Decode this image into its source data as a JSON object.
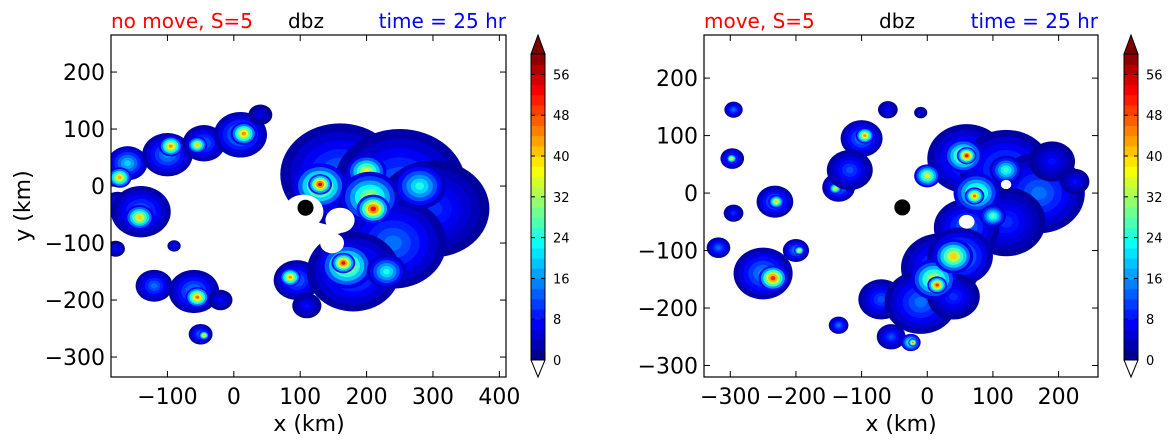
{
  "chart_data": [
    {
      "type": "heatmap",
      "title_left": "no move, S=5",
      "title_center": "dbz",
      "title_right": "time = 25 hr",
      "xlabel": "x (km)",
      "ylabel": "y (km)",
      "xlim": [
        -185,
        410
      ],
      "ylim": [
        -335,
        265
      ],
      "xticks": [
        -100,
        0,
        100,
        200,
        300,
        400
      ],
      "xtick_labels": [
        "−100",
        "0",
        "100",
        "200",
        "300",
        "400"
      ],
      "yticks": [
        -300,
        -200,
        -100,
        0,
        100,
        200
      ],
      "ytick_labels": [
        "−300",
        "−200",
        "−100",
        "0",
        "100",
        "200"
      ],
      "marker": {
        "x": 108,
        "y": -38
      },
      "colorbar": {
        "min": 0,
        "max": 60,
        "step": 2,
        "ticks": [
          0,
          8,
          16,
          24,
          32,
          40,
          48,
          56
        ],
        "extend": "both"
      },
      "cells": [
        {
          "x": -160,
          "y": 40,
          "r": 30,
          "v": 20
        },
        {
          "x": -172,
          "y": 15,
          "r": 18,
          "v": 42
        },
        {
          "x": -175,
          "y": -30,
          "r": 20,
          "v": 10
        },
        {
          "x": -140,
          "y": -45,
          "r": 45,
          "v": 14
        },
        {
          "x": -142,
          "y": -55,
          "r": 22,
          "v": 40
        },
        {
          "x": -100,
          "y": 55,
          "r": 38,
          "v": 16
        },
        {
          "x": -95,
          "y": 70,
          "r": 18,
          "v": 44
        },
        {
          "x": -45,
          "y": 75,
          "r": 32,
          "v": 14
        },
        {
          "x": -55,
          "y": 72,
          "r": 15,
          "v": 40
        },
        {
          "x": 10,
          "y": 90,
          "r": 40,
          "v": 18
        },
        {
          "x": 15,
          "y": 92,
          "r": 20,
          "v": 44
        },
        {
          "x": 40,
          "y": 125,
          "r": 18,
          "v": 6
        },
        {
          "x": -178,
          "y": -110,
          "r": 14,
          "v": 8
        },
        {
          "x": -90,
          "y": -105,
          "r": 10,
          "v": 8
        },
        {
          "x": -120,
          "y": -175,
          "r": 28,
          "v": 14
        },
        {
          "x": -60,
          "y": -185,
          "r": 38,
          "v": 16
        },
        {
          "x": -55,
          "y": -195,
          "r": 18,
          "v": 46
        },
        {
          "x": -20,
          "y": -200,
          "r": 18,
          "v": 8
        },
        {
          "x": -50,
          "y": -260,
          "r": 18,
          "v": 14
        },
        {
          "x": -45,
          "y": -262,
          "r": 8,
          "v": 42
        },
        {
          "x": 95,
          "y": -165,
          "r": 35,
          "v": 14
        },
        {
          "x": 85,
          "y": -160,
          "r": 16,
          "v": 44
        },
        {
          "x": 110,
          "y": -210,
          "r": 22,
          "v": 8
        },
        {
          "x": 160,
          "y": 20,
          "r": 90,
          "v": 14
        },
        {
          "x": 250,
          "y": 0,
          "r": 100,
          "v": 14
        },
        {
          "x": 300,
          "y": -40,
          "r": 85,
          "v": 10
        },
        {
          "x": 240,
          "y": -100,
          "r": 80,
          "v": 14
        },
        {
          "x": 180,
          "y": -150,
          "r": 70,
          "v": 14
        },
        {
          "x": 130,
          "y": 0,
          "r": 40,
          "v": 40
        },
        {
          "x": 130,
          "y": 3,
          "r": 18,
          "v": 54
        },
        {
          "x": 200,
          "y": 25,
          "r": 30,
          "v": 38
        },
        {
          "x": 205,
          "y": -20,
          "r": 45,
          "v": 34
        },
        {
          "x": 210,
          "y": -40,
          "r": 25,
          "v": 52
        },
        {
          "x": 280,
          "y": 0,
          "r": 40,
          "v": 24
        },
        {
          "x": 170,
          "y": -140,
          "r": 40,
          "v": 38
        },
        {
          "x": 165,
          "y": -135,
          "r": 18,
          "v": 52
        },
        {
          "x": 230,
          "y": -150,
          "r": 30,
          "v": 24
        }
      ],
      "holes": [
        {
          "x": 105,
          "y": -45,
          "r": 30
        },
        {
          "x": 160,
          "y": -60,
          "r": 22
        },
        {
          "x": 148,
          "y": -100,
          "r": 18
        }
      ]
    },
    {
      "type": "heatmap",
      "title_left": "move, S=5",
      "title_center": "dbz",
      "title_right": "time = 25 hr",
      "xlabel": "x (km)",
      "ylabel": "",
      "xlim": [
        -340,
        260
      ],
      "ylim": [
        -320,
        275
      ],
      "xticks": [
        -300,
        -200,
        -100,
        0,
        100,
        200
      ],
      "xtick_labels": [
        "−300",
        "−200",
        "−100",
        "0",
        "100",
        "200"
      ],
      "yticks": [
        -300,
        -200,
        -100,
        0,
        100,
        200
      ],
      "ytick_labels": [
        "−300",
        "−200",
        "−100",
        "0",
        "100",
        "200"
      ],
      "marker": {
        "x": -38,
        "y": -25
      },
      "colorbar": {
        "min": 0,
        "max": 60,
        "step": 2,
        "ticks": [
          0,
          8,
          16,
          24,
          32,
          40,
          48,
          56
        ],
        "extend": "both"
      },
      "cells": [
        {
          "x": -295,
          "y": 145,
          "r": 14,
          "v": 14
        },
        {
          "x": -297,
          "y": 60,
          "r": 18,
          "v": 14
        },
        {
          "x": -298,
          "y": 60,
          "r": 8,
          "v": 40
        },
        {
          "x": -295,
          "y": -35,
          "r": 15,
          "v": 10
        },
        {
          "x": -232,
          "y": -15,
          "r": 28,
          "v": 16
        },
        {
          "x": -230,
          "y": -15,
          "r": 12,
          "v": 40
        },
        {
          "x": -318,
          "y": -95,
          "r": 18,
          "v": 14
        },
        {
          "x": -250,
          "y": -140,
          "r": 45,
          "v": 16
        },
        {
          "x": -235,
          "y": -148,
          "r": 22,
          "v": 50
        },
        {
          "x": -200,
          "y": -100,
          "r": 20,
          "v": 16
        },
        {
          "x": -195,
          "y": -100,
          "r": 8,
          "v": 40
        },
        {
          "x": -100,
          "y": 95,
          "r": 32,
          "v": 16
        },
        {
          "x": -95,
          "y": 100,
          "r": 14,
          "v": 44
        },
        {
          "x": -135,
          "y": 10,
          "r": 25,
          "v": 16
        },
        {
          "x": -140,
          "y": 8,
          "r": 10,
          "v": 38
        },
        {
          "x": -118,
          "y": 40,
          "r": 35,
          "v": 12
        },
        {
          "x": -60,
          "y": 145,
          "r": 15,
          "v": 8
        },
        {
          "x": -10,
          "y": 140,
          "r": 10,
          "v": 6
        },
        {
          "x": -135,
          "y": -230,
          "r": 15,
          "v": 14
        },
        {
          "x": -70,
          "y": -185,
          "r": 35,
          "v": 12
        },
        {
          "x": -55,
          "y": -250,
          "r": 22,
          "v": 12
        },
        {
          "x": -25,
          "y": -260,
          "r": 15,
          "v": 30
        },
        {
          "x": -22,
          "y": -260,
          "r": 7,
          "v": 48
        },
        {
          "x": 60,
          "y": 60,
          "r": 60,
          "v": 14
        },
        {
          "x": 120,
          "y": 40,
          "r": 70,
          "v": 14
        },
        {
          "x": 170,
          "y": 0,
          "r": 70,
          "v": 14
        },
        {
          "x": 120,
          "y": -50,
          "r": 60,
          "v": 10
        },
        {
          "x": 60,
          "y": -60,
          "r": 50,
          "v": 14
        },
        {
          "x": 20,
          "y": -130,
          "r": 60,
          "v": 14
        },
        {
          "x": 50,
          "y": -110,
          "r": 50,
          "v": 18
        },
        {
          "x": -10,
          "y": -190,
          "r": 55,
          "v": 14
        },
        {
          "x": 40,
          "y": -180,
          "r": 40,
          "v": 10
        },
        {
          "x": 190,
          "y": 55,
          "r": 35,
          "v": 8
        },
        {
          "x": 225,
          "y": 20,
          "r": 22,
          "v": 8
        },
        {
          "x": 55,
          "y": 65,
          "r": 30,
          "v": 38
        },
        {
          "x": 60,
          "y": 65,
          "r": 15,
          "v": 52
        },
        {
          "x": 75,
          "y": 0,
          "r": 35,
          "v": 34
        },
        {
          "x": 72,
          "y": -5,
          "r": 15,
          "v": 46
        },
        {
          "x": 10,
          "y": -150,
          "r": 35,
          "v": 36
        },
        {
          "x": 40,
          "y": -110,
          "r": 30,
          "v": 40
        },
        {
          "x": 15,
          "y": -160,
          "r": 15,
          "v": 50
        },
        {
          "x": 0,
          "y": 30,
          "r": 20,
          "v": 36
        },
        {
          "x": 120,
          "y": 40,
          "r": 25,
          "v": 26
        },
        {
          "x": 100,
          "y": -40,
          "r": 20,
          "v": 28
        }
      ],
      "holes": [
        {
          "x": -35,
          "y": -25,
          "r": 42
        },
        {
          "x": 10,
          "y": -5,
          "r": 14
        },
        {
          "x": 60,
          "y": -50,
          "r": 12
        },
        {
          "x": 120,
          "y": 15,
          "r": 8
        }
      ]
    }
  ]
}
